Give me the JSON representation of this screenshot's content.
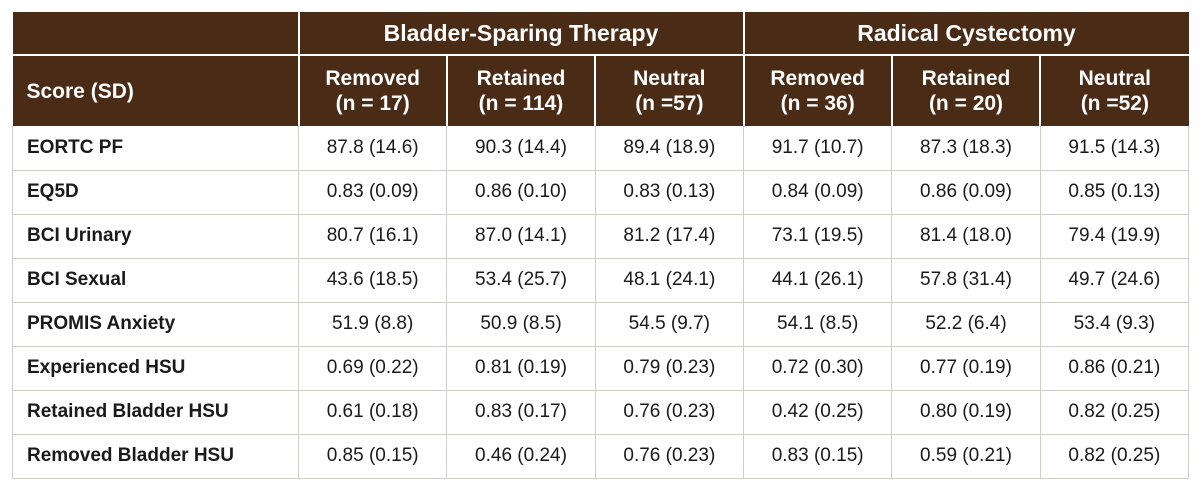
{
  "table": {
    "score_header": "Score (SD)",
    "groups": [
      "Bladder-Sparing Therapy",
      "Radical Cystectomy"
    ],
    "columns": [
      {
        "label": "Removed",
        "n": "(n = 17)"
      },
      {
        "label": "Retained",
        "n": "(n = 114)"
      },
      {
        "label": "Neutral",
        "n": "(n =57)"
      },
      {
        "label": "Removed",
        "n": "(n = 36)"
      },
      {
        "label": "Retained",
        "n": "(n = 20)"
      },
      {
        "label": "Neutral",
        "n": "(n =52)"
      }
    ],
    "rows": [
      {
        "label": "EORTC PF",
        "values": [
          "87.8 (14.6)",
          "90.3 (14.4)",
          "89.4 (18.9)",
          "91.7 (10.7)",
          "87.3 (18.3)",
          "91.5 (14.3)"
        ]
      },
      {
        "label": "EQ5D",
        "values": [
          "0.83 (0.09)",
          "0.86 (0.10)",
          "0.83 (0.13)",
          "0.84 (0.09)",
          "0.86 (0.09)",
          "0.85 (0.13)"
        ]
      },
      {
        "label": "BCI Urinary",
        "values": [
          "80.7 (16.1)",
          "87.0 (14.1)",
          "81.2 (17.4)",
          "73.1 (19.5)",
          "81.4 (18.0)",
          "79.4 (19.9)"
        ]
      },
      {
        "label": "BCI Sexual",
        "values": [
          "43.6 (18.5)",
          "53.4 (25.7)",
          "48.1 (24.1)",
          "44.1 (26.1)",
          "57.8 (31.4)",
          "49.7 (24.6)"
        ]
      },
      {
        "label": "PROMIS Anxiety",
        "values": [
          "51.9 (8.8)",
          "50.9 (8.5)",
          "54.5 (9.7)",
          "54.1 (8.5)",
          "52.2 (6.4)",
          "53.4 (9.3)"
        ]
      },
      {
        "label": "Experienced HSU",
        "values": [
          "0.69 (0.22)",
          "0.81 (0.19)",
          "0.79 (0.23)",
          "0.72 (0.30)",
          "0.77 (0.19)",
          "0.86 (0.21)"
        ]
      },
      {
        "label": "Retained Bladder HSU",
        "values": [
          "0.61 (0.18)",
          "0.83 (0.17)",
          "0.76 (0.23)",
          "0.42 (0.25)",
          "0.80 (0.19)",
          "0.82 (0.25)"
        ]
      },
      {
        "label": "Removed Bladder HSU",
        "values": [
          "0.85 (0.15)",
          "0.46 (0.24)",
          "0.76 (0.23)",
          "0.83 (0.15)",
          "0.59 (0.21)",
          "0.82 (0.25)"
        ]
      }
    ]
  },
  "colors": {
    "header_bg": "#4a2b16",
    "header_text": "#ffffff",
    "grid": "#d0ccc8"
  }
}
